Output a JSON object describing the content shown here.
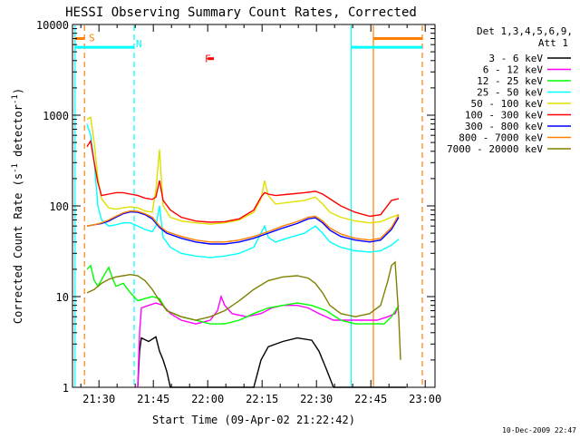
{
  "chart_data": {
    "type": "line",
    "title": "HESSI Observing Summary Count Rates, Corrected",
    "xlabel": "Start Time (09-Apr-02 21:22:42)",
    "ylabel": "Corrected Count Rate (s",
    "ylabel_sup": "-1",
    "ylabel_mid": " detector",
    "ylabel_tail": ")",
    "x_unit": "minutes after 21:22:42",
    "xlim": [
      0,
      100
    ],
    "ylim": [
      1,
      10000
    ],
    "y_scale": "log",
    "x_ticks": [
      {
        "x": 7.3,
        "label": "21:30"
      },
      {
        "x": 22.3,
        "label": "21:45"
      },
      {
        "x": 37.3,
        "label": "22:00"
      },
      {
        "x": 52.3,
        "label": "22:15"
      },
      {
        "x": 67.3,
        "label": "22:30"
      },
      {
        "x": 82.3,
        "label": "22:45"
      },
      {
        "x": 97.3,
        "label": "23:00"
      }
    ],
    "y_ticks": [
      {
        "y": 1,
        "label": "1"
      },
      {
        "y": 10,
        "label": "10"
      },
      {
        "y": 100,
        "label": "100"
      },
      {
        "y": 1000,
        "label": "1000"
      },
      {
        "y": 10000,
        "label": "10000"
      }
    ],
    "legend_header": [
      "Det 1,3,4,5,6,9,",
      "Att 1"
    ],
    "legend_position": "right",
    "series": [
      {
        "name": "3 - 6 keV",
        "color": "#000000",
        "points": [
          [
            18,
            1
          ],
          [
            18.5,
            2.5
          ],
          [
            19,
            3.5
          ],
          [
            21,
            3.2
          ],
          [
            23,
            3.6
          ],
          [
            24,
            2.5
          ],
          [
            25,
            2
          ],
          [
            26,
            1.5
          ],
          [
            27,
            1
          ],
          [
            50,
            1
          ],
          [
            52,
            2
          ],
          [
            54,
            2.8
          ],
          [
            58,
            3.2
          ],
          [
            62,
            3.5
          ],
          [
            66,
            3.3
          ],
          [
            68,
            2.5
          ],
          [
            70,
            1.6
          ],
          [
            72,
            1
          ],
          [
            92,
            1
          ]
        ]
      },
      {
        "name": "6 - 12 keV",
        "color": "#ff00ff",
        "points": [
          [
            18,
            1
          ],
          [
            18.5,
            4
          ],
          [
            19,
            7.5
          ],
          [
            21,
            8
          ],
          [
            23,
            8.5
          ],
          [
            25,
            8
          ],
          [
            27,
            6.5
          ],
          [
            30,
            5.5
          ],
          [
            34,
            5
          ],
          [
            38,
            5.5
          ],
          [
            40,
            7
          ],
          [
            41,
            10
          ],
          [
            42,
            8
          ],
          [
            44,
            6.5
          ],
          [
            48,
            6
          ],
          [
            52,
            6.5
          ],
          [
            55,
            7.5
          ],
          [
            58,
            8
          ],
          [
            62,
            8
          ],
          [
            65,
            7.5
          ],
          [
            68,
            6.5
          ],
          [
            72,
            5.5
          ],
          [
            76,
            5.5
          ],
          [
            80,
            5.5
          ],
          [
            84,
            5.5
          ],
          [
            87,
            6
          ],
          [
            89,
            6.5
          ],
          [
            90,
            8
          ]
        ]
      },
      {
        "name": "12 - 25 keV",
        "color": "#00ff00",
        "points": [
          [
            4,
            20
          ],
          [
            5,
            22
          ],
          [
            6,
            15
          ],
          [
            7,
            13
          ],
          [
            9,
            18
          ],
          [
            10,
            21
          ],
          [
            11,
            16
          ],
          [
            12,
            13
          ],
          [
            14,
            14
          ],
          [
            16,
            11
          ],
          [
            18,
            9
          ],
          [
            20,
            9.5
          ],
          [
            22,
            10
          ],
          [
            24,
            9.5
          ],
          [
            26,
            7
          ],
          [
            30,
            6
          ],
          [
            34,
            5.5
          ],
          [
            38,
            5
          ],
          [
            42,
            5
          ],
          [
            46,
            5.5
          ],
          [
            50,
            6.5
          ],
          [
            54,
            7.5
          ],
          [
            58,
            8
          ],
          [
            62,
            8.5
          ],
          [
            66,
            8
          ],
          [
            70,
            7
          ],
          [
            74,
            5.5
          ],
          [
            78,
            5
          ],
          [
            82,
            5
          ],
          [
            86,
            5
          ],
          [
            88,
            6
          ],
          [
            90,
            8
          ]
        ]
      },
      {
        "name": "25 - 50 keV",
        "color": "#00ffff",
        "points": [
          [
            4,
            800
          ],
          [
            5,
            600
          ],
          [
            6,
            300
          ],
          [
            7,
            100
          ],
          [
            8,
            70
          ],
          [
            10,
            60
          ],
          [
            12,
            62
          ],
          [
            14,
            65
          ],
          [
            16,
            65
          ],
          [
            18,
            60
          ],
          [
            20,
            55
          ],
          [
            22,
            52
          ],
          [
            23,
            60
          ],
          [
            24,
            100
          ],
          [
            25,
            45
          ],
          [
            27,
            35
          ],
          [
            30,
            30
          ],
          [
            34,
            28
          ],
          [
            38,
            27
          ],
          [
            42,
            28
          ],
          [
            46,
            30
          ],
          [
            50,
            35
          ],
          [
            52,
            50
          ],
          [
            53,
            60
          ],
          [
            54,
            45
          ],
          [
            56,
            40
          ],
          [
            60,
            45
          ],
          [
            64,
            50
          ],
          [
            67,
            60
          ],
          [
            69,
            50
          ],
          [
            71,
            40
          ],
          [
            74,
            35
          ],
          [
            78,
            32
          ],
          [
            82,
            31
          ],
          [
            85,
            32
          ],
          [
            88,
            37
          ],
          [
            90,
            43
          ]
        ]
      },
      {
        "name": "50 - 100 keV",
        "color": "#e0e000",
        "points": [
          [
            4,
            900
          ],
          [
            5,
            950
          ],
          [
            6,
            500
          ],
          [
            7,
            200
          ],
          [
            8,
            120
          ],
          [
            10,
            95
          ],
          [
            12,
            92
          ],
          [
            14,
            95
          ],
          [
            16,
            98
          ],
          [
            18,
            95
          ],
          [
            20,
            88
          ],
          [
            22,
            85
          ],
          [
            23,
            150
          ],
          [
            24,
            420
          ],
          [
            25,
            100
          ],
          [
            27,
            75
          ],
          [
            30,
            68
          ],
          [
            34,
            65
          ],
          [
            38,
            63
          ],
          [
            42,
            65
          ],
          [
            46,
            70
          ],
          [
            50,
            85
          ],
          [
            52,
            120
          ],
          [
            53,
            190
          ],
          [
            54,
            130
          ],
          [
            56,
            105
          ],
          [
            60,
            110
          ],
          [
            64,
            115
          ],
          [
            67,
            125
          ],
          [
            69,
            105
          ],
          [
            71,
            85
          ],
          [
            74,
            75
          ],
          [
            78,
            68
          ],
          [
            82,
            65
          ],
          [
            85,
            67
          ],
          [
            88,
            75
          ],
          [
            90,
            80
          ]
        ]
      },
      {
        "name": "100 - 300 keV",
        "color": "#ff0000",
        "points": [
          [
            4,
            450
          ],
          [
            5,
            520
          ],
          [
            6,
            300
          ],
          [
            7,
            180
          ],
          [
            8,
            130
          ],
          [
            10,
            135
          ],
          [
            12,
            140
          ],
          [
            14,
            140
          ],
          [
            16,
            135
          ],
          [
            18,
            130
          ],
          [
            20,
            122
          ],
          [
            22,
            118
          ],
          [
            23,
            125
          ],
          [
            24,
            190
          ],
          [
            25,
            115
          ],
          [
            27,
            90
          ],
          [
            30,
            75
          ],
          [
            34,
            68
          ],
          [
            38,
            66
          ],
          [
            42,
            67
          ],
          [
            46,
            72
          ],
          [
            50,
            90
          ],
          [
            52,
            125
          ],
          [
            53,
            140
          ],
          [
            54,
            135
          ],
          [
            56,
            130
          ],
          [
            60,
            135
          ],
          [
            64,
            140
          ],
          [
            67,
            145
          ],
          [
            69,
            135
          ],
          [
            71,
            120
          ],
          [
            74,
            100
          ],
          [
            78,
            85
          ],
          [
            82,
            77
          ],
          [
            85,
            80
          ],
          [
            88,
            115
          ],
          [
            90,
            120
          ]
        ]
      },
      {
        "name": "300 - 800 keV",
        "color": "#0000ff",
        "points": [
          [
            4,
            60
          ],
          [
            6,
            62
          ],
          [
            8,
            64
          ],
          [
            10,
            68
          ],
          [
            12,
            75
          ],
          [
            14,
            82
          ],
          [
            16,
            86
          ],
          [
            18,
            85
          ],
          [
            20,
            80
          ],
          [
            22,
            72
          ],
          [
            24,
            58
          ],
          [
            26,
            50
          ],
          [
            30,
            44
          ],
          [
            34,
            40
          ],
          [
            38,
            38
          ],
          [
            42,
            38
          ],
          [
            46,
            40
          ],
          [
            50,
            44
          ],
          [
            54,
            50
          ],
          [
            58,
            57
          ],
          [
            62,
            64
          ],
          [
            65,
            72
          ],
          [
            67,
            74
          ],
          [
            69,
            65
          ],
          [
            71,
            54
          ],
          [
            74,
            46
          ],
          [
            78,
            42
          ],
          [
            82,
            40
          ],
          [
            85,
            42
          ],
          [
            88,
            55
          ],
          [
            90,
            75
          ]
        ]
      },
      {
        "name": "800 - 7000 keV",
        "color": "#ff8000",
        "points": [
          [
            4,
            60
          ],
          [
            6,
            62
          ],
          [
            8,
            65
          ],
          [
            10,
            70
          ],
          [
            12,
            77
          ],
          [
            14,
            84
          ],
          [
            16,
            88
          ],
          [
            18,
            87
          ],
          [
            20,
            82
          ],
          [
            22,
            75
          ],
          [
            24,
            60
          ],
          [
            26,
            52
          ],
          [
            30,
            46
          ],
          [
            34,
            42
          ],
          [
            38,
            40
          ],
          [
            42,
            40
          ],
          [
            46,
            42
          ],
          [
            50,
            46
          ],
          [
            54,
            52
          ],
          [
            58,
            60
          ],
          [
            62,
            67
          ],
          [
            65,
            75
          ],
          [
            67,
            77
          ],
          [
            69,
            68
          ],
          [
            71,
            57
          ],
          [
            74,
            49
          ],
          [
            78,
            44
          ],
          [
            82,
            42
          ],
          [
            85,
            44
          ],
          [
            88,
            58
          ],
          [
            90,
            80
          ]
        ]
      },
      {
        "name": "7000 - 20000 keV",
        "color": "#808000",
        "points": [
          [
            4,
            11
          ],
          [
            6,
            12
          ],
          [
            8,
            14
          ],
          [
            10,
            15.5
          ],
          [
            12,
            16.5
          ],
          [
            14,
            17
          ],
          [
            16,
            17.5
          ],
          [
            18,
            17
          ],
          [
            20,
            15
          ],
          [
            22,
            12
          ],
          [
            24,
            9
          ],
          [
            26,
            7
          ],
          [
            30,
            6
          ],
          [
            34,
            5.5
          ],
          [
            38,
            6
          ],
          [
            42,
            7
          ],
          [
            46,
            9
          ],
          [
            50,
            12
          ],
          [
            54,
            15
          ],
          [
            58,
            16.5
          ],
          [
            62,
            17
          ],
          [
            65,
            16
          ],
          [
            67,
            14
          ],
          [
            69,
            11
          ],
          [
            71,
            8
          ],
          [
            74,
            6.5
          ],
          [
            78,
            6
          ],
          [
            82,
            6.5
          ],
          [
            85,
            8
          ],
          [
            87,
            15
          ],
          [
            88,
            22
          ],
          [
            89,
            24
          ],
          [
            90,
            6
          ],
          [
            90.5,
            2
          ]
        ]
      }
    ],
    "annotations": [
      {
        "label": "S",
        "x": 4.5,
        "y": 7200,
        "color": "#ff8000"
      },
      {
        "label": "N",
        "x": 17.5,
        "y": 6200,
        "color": "#00ffff"
      },
      {
        "label": "F",
        "x": 36.5,
        "y": 4200,
        "color": "#ff0000"
      }
    ],
    "vertical_markers": [
      {
        "x": 0.7,
        "color": "#00ffff",
        "style": "solid"
      },
      {
        "x": 3.3,
        "color": "#ff8000",
        "style": "dashed"
      },
      {
        "x": 17.0,
        "color": "#00ffff",
        "style": "dashed"
      },
      {
        "x": 76.9,
        "color": "#00ffff",
        "style": "solid"
      },
      {
        "x": 83.0,
        "color": "#ff8000",
        "style": "solid"
      },
      {
        "x": 96.5,
        "color": "#ff8000",
        "style": "dashed"
      }
    ],
    "horizontal_markers": [
      {
        "x1": 0.7,
        "x2": 3.3,
        "y": 7000,
        "color": "#ff8000"
      },
      {
        "x1": 0.7,
        "x2": 17.0,
        "y": 5600,
        "color": "#00ffff"
      },
      {
        "x1": 37.3,
        "x2": 39.0,
        "y": 4200,
        "color": "#ff0000"
      },
      {
        "x1": 76.9,
        "x2": 96.5,
        "y": 5600,
        "color": "#00ffff"
      },
      {
        "x1": 83.0,
        "x2": 96.5,
        "y": 7000,
        "color": "#ff8000"
      }
    ]
  },
  "footer": {
    "timestamp": "10-Dec-2009 22:47"
  }
}
